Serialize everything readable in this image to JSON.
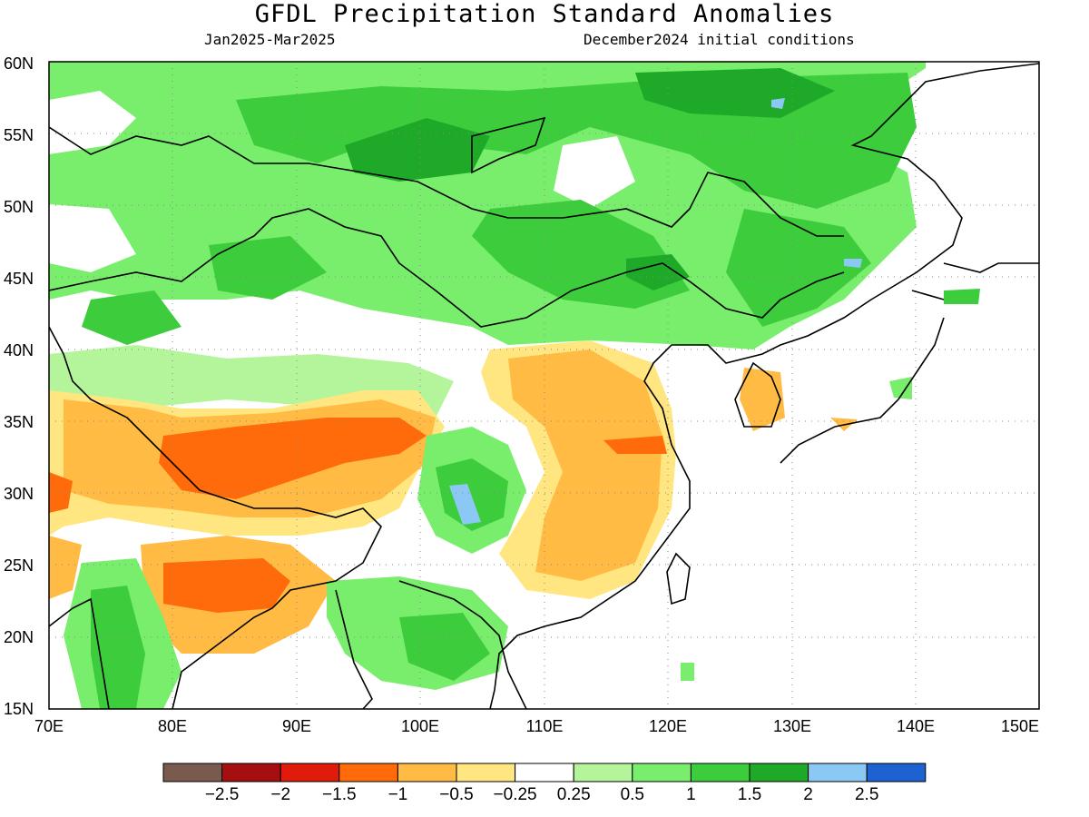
{
  "header": {
    "title": "GFDL Precipitation Standard Anomalies",
    "period": "Jan2025-Mar2025",
    "initial_conditions": "December2024 initial conditions"
  },
  "axes": {
    "lon_ticks": [
      "70E",
      "80E",
      "90E",
      "100E",
      "110E",
      "120E",
      "130E",
      "140E",
      "150E"
    ],
    "lat_ticks": [
      "60N",
      "55N",
      "50N",
      "45N",
      "40N",
      "35N",
      "30N",
      "25N",
      "20N",
      "15N"
    ],
    "lon_range": [
      70,
      150
    ],
    "lat_range": [
      15,
      60
    ],
    "grid": "dotted"
  },
  "colorbar": {
    "labels": [
      "-2.5",
      "-2",
      "-1.5",
      "-1",
      "-0.5",
      "-0.25",
      "0.25",
      "0.5",
      "1",
      "1.5",
      "2",
      "2.5"
    ],
    "colors": [
      "#7a5a4e",
      "#a50f0f",
      "#e01b0b",
      "#ff6a0a",
      "#ffbb44",
      "#ffe680",
      "#ffffff",
      "#b4f59c",
      "#78ee6c",
      "#3ccc3c",
      "#1eaa28",
      "#8cc8f4",
      "#1e62d2"
    ]
  }
}
